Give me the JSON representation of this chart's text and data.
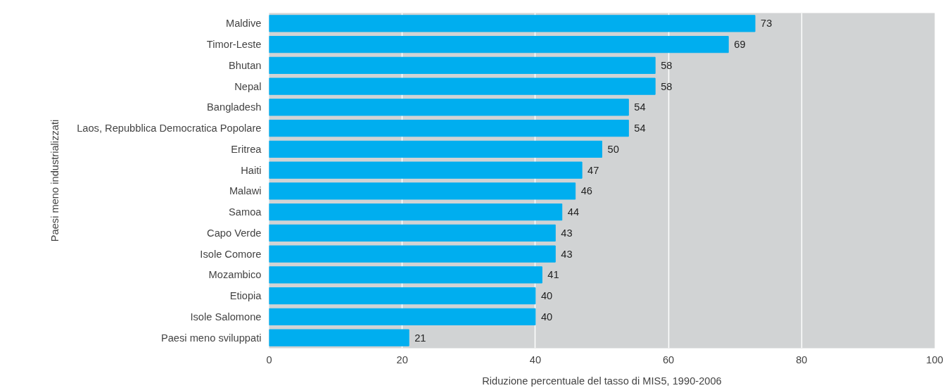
{
  "chart_data": {
    "type": "bar",
    "orientation": "horizontal",
    "categories": [
      "Maldive",
      "Timor-Leste",
      "Bhutan",
      "Nepal",
      "Bangladesh",
      "Laos, Repubblica Democratica Popolare",
      "Eritrea",
      "Haiti",
      "Malawi",
      "Samoa",
      "Capo Verde",
      "Isole Comore",
      "Mozambico",
      "Etiopia",
      "Isole Salomone",
      "Paesi meno sviluppati"
    ],
    "values": [
      73,
      69,
      58,
      58,
      54,
      54,
      50,
      47,
      46,
      44,
      43,
      43,
      41,
      40,
      40,
      21
    ],
    "color": "#00aeef",
    "xlim": [
      0,
      100
    ],
    "xticks": [
      0,
      20,
      40,
      60,
      80,
      100
    ],
    "xlabel": "Riduzione percentuale del tasso di MIS5, 1990-2006",
    "ylabel": "Paesi meno industrializzati",
    "grid": "x",
    "data_labels": true
  }
}
